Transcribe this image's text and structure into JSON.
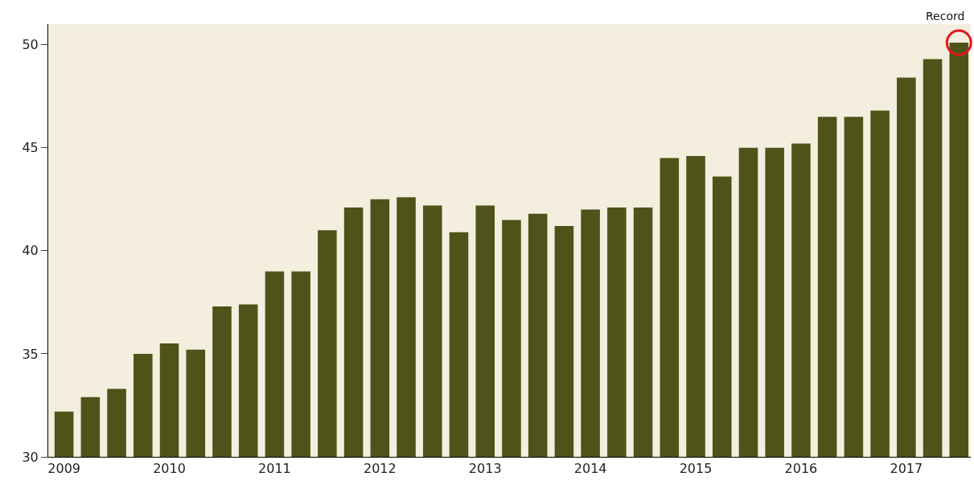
{
  "chart_data": {
    "type": "bar",
    "categories": [
      "2009",
      null,
      null,
      null,
      "2010",
      null,
      null,
      null,
      "2011",
      null,
      null,
      null,
      "2012",
      null,
      null,
      null,
      "2013",
      null,
      null,
      null,
      "2014",
      null,
      null,
      null,
      "2015",
      null,
      null,
      null,
      "2016",
      null,
      null,
      null,
      "2017",
      null,
      null
    ],
    "series": [
      {
        "color": "#4e5419",
        "values": [
          32.2,
          32.9,
          33.3,
          35.0,
          35.5,
          35.2,
          37.3,
          37.4,
          39.0,
          39.0,
          41.0,
          42.1,
          42.5,
          42.6,
          42.2,
          40.9,
          42.2,
          41.5,
          41.8,
          41.2,
          42.0,
          42.1,
          42.1,
          44.5,
          44.6,
          43.6,
          45.0,
          45.0,
          45.2,
          46.5,
          46.5,
          46.8,
          48.4,
          49.3,
          50.1
        ]
      },
      {
        "type": "scatter",
        "marker": "circle",
        "color": "#e8141b",
        "values": [
          null,
          null,
          null,
          null,
          null,
          null,
          null,
          null,
          null,
          null,
          null,
          null,
          null,
          null,
          null,
          null,
          null,
          null,
          null,
          null,
          null,
          null,
          null,
          null,
          null,
          null,
          null,
          null,
          null,
          null,
          null,
          null,
          null,
          null,
          50.1
        ]
      }
    ],
    "ylim": [
      30,
      51
    ],
    "yticks": [
      30,
      35,
      40,
      45,
      50
    ],
    "annotations": [
      "Record"
    ],
    "grid": false
  }
}
